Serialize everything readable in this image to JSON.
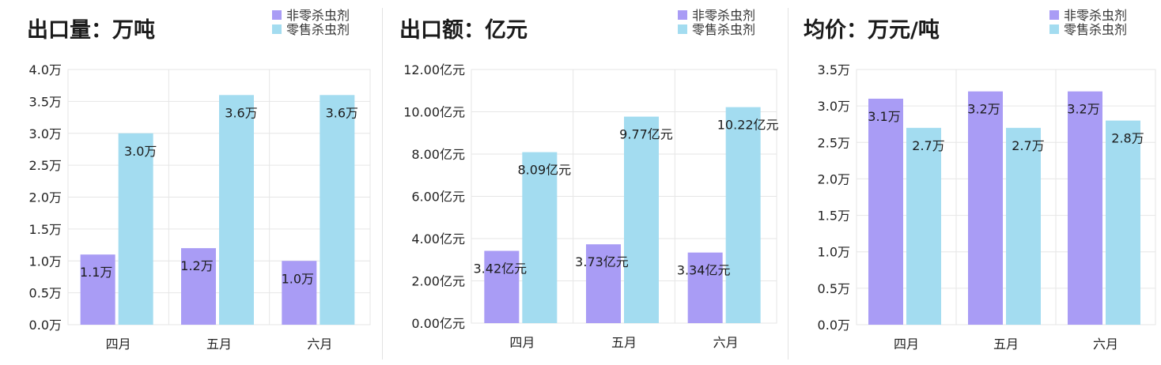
{
  "colors": {
    "series_a": "#a99cf5",
    "series_b": "#a3dcf0"
  },
  "chart_data": [
    {
      "type": "bar",
      "title": "出口量：万吨",
      "categories": [
        "四月",
        "五月",
        "六月"
      ],
      "series": [
        {
          "name": "非零杀虫剂",
          "values": [
            1.1,
            1.2,
            1.0
          ],
          "labels": [
            "1.1万",
            "1.2万",
            "1.0万"
          ]
        },
        {
          "name": "零售杀虫剂",
          "values": [
            3.0,
            3.6,
            3.6
          ],
          "labels": [
            "3.0万",
            "3.6万",
            "3.6万"
          ]
        }
      ],
      "ylim": [
        0,
        4.0
      ],
      "yticks": [
        0,
        0.5,
        1.0,
        1.5,
        2.0,
        2.5,
        3.0,
        3.5,
        4.0
      ],
      "ytick_labels": [
        "0.0万",
        "0.5万",
        "1.0万",
        "1.5万",
        "2.0万",
        "2.5万",
        "3.0万",
        "3.5万",
        "4.0万"
      ],
      "grid": true,
      "legend": "top-right"
    },
    {
      "type": "bar",
      "title": "出口额：亿元",
      "categories": [
        "四月",
        "五月",
        "六月"
      ],
      "series": [
        {
          "name": "非零杀虫剂",
          "values": [
            3.42,
            3.73,
            3.34
          ],
          "labels": [
            "3.42亿元",
            "3.73亿元",
            "3.34亿元"
          ]
        },
        {
          "name": "零售杀虫剂",
          "values": [
            8.09,
            9.77,
            10.22
          ],
          "labels": [
            "8.09亿元",
            "9.77亿元",
            "10.22亿元"
          ]
        }
      ],
      "ylim": [
        0,
        12.0
      ],
      "yticks": [
        0,
        2,
        4,
        6,
        8,
        10,
        12
      ],
      "ytick_labels": [
        "0.00亿元",
        "2.00亿元",
        "4.00亿元",
        "6.00亿元",
        "8.00亿元",
        "10.00亿元",
        "12.00亿元"
      ],
      "grid": true,
      "legend": "top-right"
    },
    {
      "type": "bar",
      "title": "均价：万元/吨",
      "categories": [
        "四月",
        "五月",
        "六月"
      ],
      "series": [
        {
          "name": "非零杀虫剂",
          "values": [
            3.1,
            3.2,
            3.2
          ],
          "labels": [
            "3.1万",
            "3.2万",
            "3.2万"
          ]
        },
        {
          "name": "零售杀虫剂",
          "values": [
            2.7,
            2.7,
            2.8
          ],
          "labels": [
            "2.7万",
            "2.7万",
            "2.8万"
          ]
        }
      ],
      "ylim": [
        0,
        3.5
      ],
      "yticks": [
        0,
        0.5,
        1.0,
        1.5,
        2.0,
        2.5,
        3.0,
        3.5
      ],
      "ytick_labels": [
        "0.0万",
        "0.5万",
        "1.0万",
        "1.5万",
        "2.0万",
        "2.5万",
        "3.0万",
        "3.5万"
      ],
      "grid": true,
      "legend": "top-right"
    }
  ]
}
